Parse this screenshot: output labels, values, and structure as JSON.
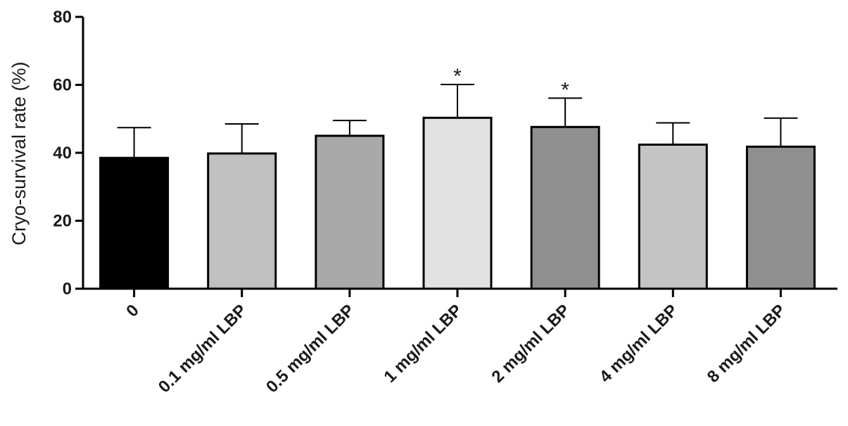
{
  "chart_data": {
    "type": "bar",
    "title": "",
    "xlabel": "",
    "ylabel": "Cryo-survival rate (%)",
    "ylim": [
      0,
      80
    ],
    "yticks": [
      0,
      20,
      40,
      60,
      80
    ],
    "grid": false,
    "categories": [
      "0",
      "0.1 mg/ml LBP",
      "0.5 mg/ml LBP",
      "1 mg/ml LBP",
      "2 mg/ml LBP",
      "4 mg/ml LBP",
      "8 mg/ml LBP"
    ],
    "values": [
      38.5,
      39.8,
      45.0,
      50.3,
      47.6,
      42.4,
      41.8
    ],
    "errors": [
      8.9,
      8.7,
      4.5,
      9.8,
      8.5,
      6.4,
      8.4
    ],
    "significance": [
      "",
      "",
      "",
      "*",
      "*",
      "",
      ""
    ],
    "colors": [
      "#000000",
      "#c0c0c0",
      "#a9a9a9",
      "#e2e2e2",
      "#8f8f8f",
      "#c4c4c4",
      "#8f8f8f"
    ]
  }
}
